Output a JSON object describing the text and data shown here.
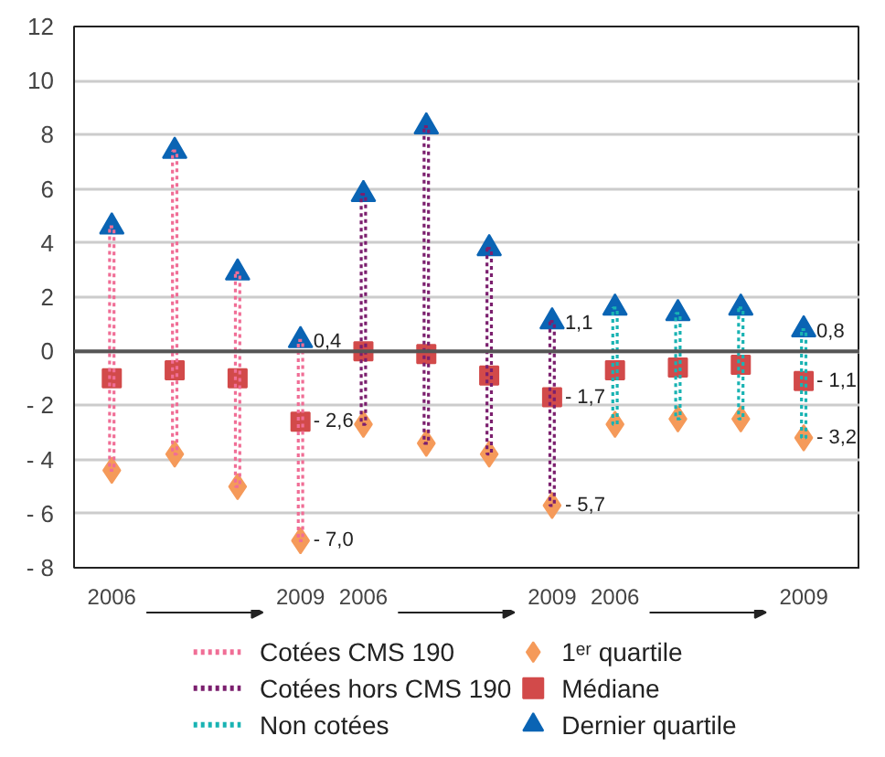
{
  "chart_data": {
    "type": "scatter",
    "categories": [
      "2006",
      null,
      null,
      "2009",
      "2006",
      null,
      null,
      "2009",
      "2006",
      null,
      null,
      "2009"
    ],
    "ylim": [
      -8,
      12
    ],
    "yticks": [
      {
        "value": -8,
        "label": "- 8"
      },
      {
        "value": -6,
        "label": "- 6"
      },
      {
        "value": -4,
        "label": "- 4"
      },
      {
        "value": -2,
        "label": "- 2"
      },
      0,
      2,
      4,
      6,
      8,
      10,
      12
    ],
    "grid": "y",
    "legend": "bottom",
    "series": [
      {
        "name": "Cotées CMS 190",
        "type": "bar",
        "line_style": "dotted",
        "color": "#f06e96",
        "base": [
          -4.4,
          -3.8,
          -5.0,
          -7.0,
          null,
          null,
          null,
          null,
          null,
          null,
          null,
          null
        ],
        "values": [
          9.0,
          11.2,
          7.9,
          7.4,
          null,
          null,
          null,
          null,
          null,
          null,
          null,
          null
        ]
      },
      {
        "name": "Cotées hors CMS 190",
        "type": "bar",
        "line_style": "dotted",
        "color": "#7b1f6e",
        "base": [
          null,
          null,
          null,
          null,
          -2.7,
          -3.4,
          -3.8,
          -5.7,
          null,
          null,
          null,
          null
        ],
        "values": [
          null,
          null,
          null,
          null,
          8.5,
          11.7,
          7.6,
          6.8,
          null,
          null,
          null,
          null
        ]
      },
      {
        "name": "Non cotées",
        "type": "bar",
        "line_style": "dotted",
        "color": "#19b3b3",
        "base": [
          null,
          null,
          null,
          null,
          null,
          null,
          null,
          null,
          -2.7,
          -2.5,
          -2.5,
          -3.2
        ],
        "values": [
          null,
          null,
          null,
          null,
          null,
          null,
          null,
          null,
          4.3,
          3.9,
          4.1,
          4.0
        ]
      },
      {
        "name": "1ᵉʳ quartile",
        "marker": "diamond",
        "color": "#f59a5a",
        "values": [
          -4.4,
          -3.8,
          -5.0,
          -7.0,
          -2.7,
          -3.4,
          -3.8,
          -5.7,
          -2.7,
          -2.5,
          -2.5,
          -3.2
        ],
        "value_labels": [
          null,
          null,
          null,
          "- 7,0",
          null,
          null,
          null,
          "- 5,7",
          null,
          null,
          null,
          "- 3,2"
        ]
      },
      {
        "name": "Médiane",
        "marker": "square",
        "color": "#d24a4a",
        "values": [
          -1.0,
          -0.7,
          -1.0,
          -2.6,
          0.0,
          -0.1,
          -0.9,
          -1.7,
          -0.7,
          -0.6,
          -0.5,
          -1.1
        ],
        "value_labels": [
          null,
          null,
          null,
          "- 2,6",
          null,
          null,
          null,
          "- 1,7",
          null,
          null,
          null,
          "- 1,1"
        ]
      },
      {
        "name": "Dernier quartile",
        "marker": "triangle",
        "color": "#0a64b4",
        "values": [
          4.6,
          7.4,
          2.9,
          0.4,
          5.8,
          8.3,
          3.8,
          1.1,
          1.6,
          1.4,
          1.6,
          0.8
        ],
        "value_labels": [
          null,
          null,
          null,
          "0,4",
          null,
          null,
          null,
          "1,1",
          null,
          null,
          null,
          "0,8"
        ]
      }
    ],
    "ref_lines": [
      {
        "axis": "y",
        "value": 0,
        "color": "#555555"
      }
    ]
  }
}
